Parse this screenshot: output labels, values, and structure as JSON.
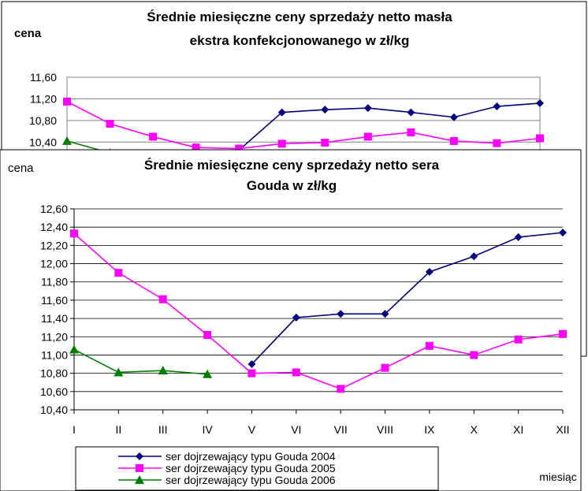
{
  "chart_data": [
    {
      "type": "line",
      "title_line1": "Średnie miesięczne ceny sprzedaży netto masła",
      "title_line2": "ekstra konfekcjonowanego w zł/kg",
      "ylabel": "cena",
      "y_ticks": [
        "10,40",
        "10,80",
        "11,20",
        "11,60"
      ],
      "ylim": [
        10.2,
        11.6
      ],
      "colors": [
        "#000080",
        "#FF00FF",
        "#008000"
      ],
      "series": [
        {
          "values": [
            null,
            null,
            null,
            null,
            10.25,
            10.95,
            11.0,
            11.03,
            10.95,
            10.86,
            11.06,
            11.12
          ]
        },
        {
          "values": [
            11.15,
            10.74,
            10.5,
            10.3,
            10.28,
            10.37,
            10.39,
            10.5,
            10.58,
            10.42,
            10.38,
            10.47
          ]
        },
        {
          "values": [
            10.42,
            10.2,
            null,
            null,
            null,
            null,
            null,
            null,
            null,
            null,
            null,
            null
          ]
        }
      ]
    },
    {
      "type": "line",
      "title_line1": "Średnie miesięczne ceny sprzedaży netto sera",
      "title_line2": "Gouda w zł/kg",
      "ylabel": "cena",
      "xlabel": "miesiąc",
      "categories": [
        "I",
        "II",
        "III",
        "IV",
        "V",
        "VI",
        "VII",
        "VIII",
        "IX",
        "X",
        "XI",
        "XII"
      ],
      "y_ticks": [
        "10,40",
        "10,60",
        "10,80",
        "11,00",
        "11,20",
        "11,40",
        "11,60",
        "11,80",
        "12,00",
        "12,20",
        "12,40",
        "12,60"
      ],
      "ylim": [
        10.4,
        12.6
      ],
      "grid": true,
      "legend_position": "bottom-left",
      "series": [
        {
          "name": "ser dojrzewający typu Gouda 2004",
          "color": "#000080",
          "marker": "diamond",
          "values": [
            null,
            null,
            null,
            null,
            10.9,
            11.41,
            11.45,
            11.45,
            11.91,
            12.08,
            12.29,
            12.34
          ]
        },
        {
          "name": "ser dojrzewający typu Gouda 2005",
          "color": "#FF00FF",
          "marker": "square",
          "values": [
            12.33,
            11.9,
            11.61,
            11.22,
            10.8,
            10.81,
            10.63,
            10.86,
            11.1,
            11.0,
            11.17,
            11.23
          ]
        },
        {
          "name": "ser dojrzewający typu Gouda 2006",
          "color": "#008000",
          "marker": "triangle",
          "values": [
            11.06,
            10.81,
            10.83,
            10.79,
            null,
            null,
            null,
            null,
            null,
            null,
            null,
            null
          ]
        }
      ]
    }
  ]
}
